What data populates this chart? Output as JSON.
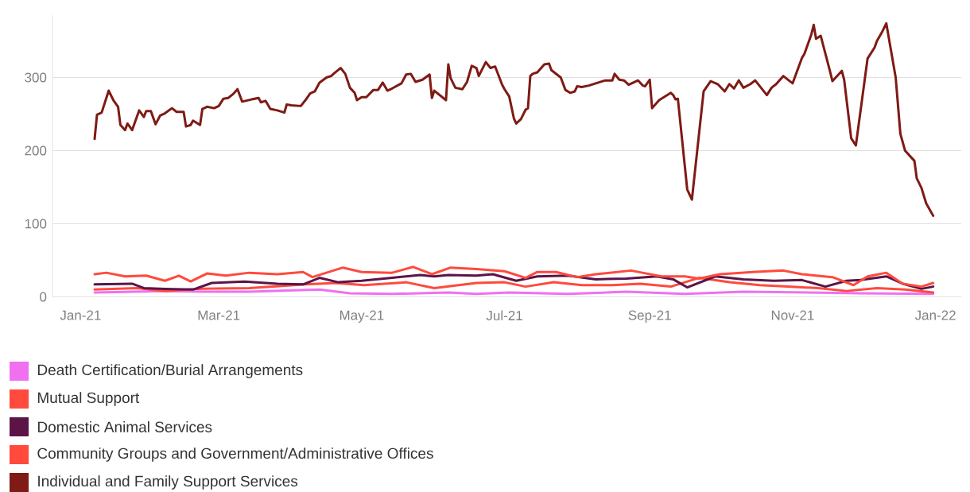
{
  "chart_data": {
    "type": "line",
    "xlim": [
      "2020-12-20",
      "2022-01-12"
    ],
    "xticks": [
      {
        "value": "2021-01-01",
        "label": "Jan-21"
      },
      {
        "value": "2021-03-01",
        "label": "Mar-21"
      },
      {
        "value": "2021-05-01",
        "label": "May-21"
      },
      {
        "value": "2021-07-01",
        "label": "Jul-21"
      },
      {
        "value": "2021-09-01",
        "label": "Sep-21"
      },
      {
        "value": "2021-11-01",
        "label": "Nov-21"
      },
      {
        "value": "2022-01-01",
        "label": "Jan-22"
      }
    ],
    "ylim": [
      0,
      385
    ],
    "yticks": [
      0,
      100,
      200,
      300
    ],
    "grid": "y",
    "legend": "bottom",
    "series": [
      {
        "name": "Death Certification/Burial Arrangements",
        "color": "#f070f0",
        "x": [
          "2021-01-07",
          "2021-02-06",
          "2021-02-24",
          "2021-03-14",
          "2021-04-13",
          "2021-04-26",
          "2021-05-14",
          "2021-06-07",
          "2021-06-19",
          "2021-07-03",
          "2021-07-28",
          "2021-08-22",
          "2021-09-16",
          "2021-10-11",
          "2021-11-05",
          "2021-11-30",
          "2021-12-31"
        ],
        "values": [
          6,
          8,
          7,
          7,
          10,
          5,
          4,
          6,
          4,
          6,
          4,
          7,
          4,
          7,
          6,
          5,
          4
        ]
      },
      {
        "name": "Mutual Support",
        "color": "#ff4a3d",
        "x": [
          "2021-01-07",
          "2021-01-25",
          "2021-02-06",
          "2021-02-20",
          "2021-03-14",
          "2021-04-07",
          "2021-04-20",
          "2021-05-02",
          "2021-05-20",
          "2021-06-01",
          "2021-06-19",
          "2021-07-01",
          "2021-07-10",
          "2021-07-22",
          "2021-08-03",
          "2021-08-16",
          "2021-08-28",
          "2021-09-10",
          "2021-09-22",
          "2021-10-05",
          "2021-10-18",
          "2021-10-30",
          "2021-11-12",
          "2021-11-24",
          "2021-12-07",
          "2021-12-19",
          "2021-12-31"
        ],
        "values": [
          10,
          12,
          8,
          11,
          12,
          17,
          19,
          16,
          20,
          12,
          19,
          20,
          14,
          20,
          16,
          16,
          18,
          14,
          26,
          20,
          16,
          14,
          12,
          8,
          12,
          10,
          6
        ]
      },
      {
        "name": "Domestic Animal Services",
        "color": "#5c1447",
        "x": [
          "2021-01-07",
          "2021-01-23",
          "2021-01-28",
          "2021-02-06",
          "2021-02-18",
          "2021-02-26",
          "2021-03-12",
          "2021-03-26",
          "2021-04-06",
          "2021-04-13",
          "2021-04-21",
          "2021-05-01",
          "2021-05-14",
          "2021-05-26",
          "2021-06-01",
          "2021-06-07",
          "2021-06-19",
          "2021-06-26",
          "2021-07-06",
          "2021-07-15",
          "2021-07-28",
          "2021-08-09",
          "2021-08-22",
          "2021-09-04",
          "2021-09-11",
          "2021-09-17",
          "2021-09-29",
          "2021-10-11",
          "2021-10-24",
          "2021-11-05",
          "2021-11-15",
          "2021-11-24",
          "2021-11-30",
          "2021-12-11",
          "2021-12-18",
          "2021-12-26",
          "2021-12-31"
        ],
        "values": [
          17,
          18,
          12,
          11,
          10,
          19,
          21,
          18,
          17,
          26,
          20,
          22,
          26,
          30,
          28,
          30,
          29,
          31,
          22,
          28,
          29,
          24,
          25,
          28,
          24,
          13,
          28,
          24,
          22,
          23,
          14,
          22,
          23,
          28,
          18,
          11,
          14
        ]
      },
      {
        "name": "Community Groups and Government/Administrative Offices",
        "color": "#ff4a3d",
        "x": [
          "2021-01-07",
          "2021-01-12",
          "2021-01-20",
          "2021-01-29",
          "2021-02-06",
          "2021-02-12",
          "2021-02-17",
          "2021-02-24",
          "2021-03-04",
          "2021-03-14",
          "2021-03-26",
          "2021-04-06",
          "2021-04-10",
          "2021-04-23",
          "2021-05-01",
          "2021-05-14",
          "2021-05-23",
          "2021-05-31",
          "2021-06-08",
          "2021-06-19",
          "2021-07-01",
          "2021-07-10",
          "2021-07-15",
          "2021-07-23",
          "2021-08-01",
          "2021-08-09",
          "2021-08-24",
          "2021-09-06",
          "2021-09-16",
          "2021-09-22",
          "2021-10-01",
          "2021-10-15",
          "2021-10-28",
          "2021-11-05",
          "2021-11-18",
          "2021-11-27",
          "2021-12-03",
          "2021-12-11",
          "2021-12-18",
          "2021-12-26",
          "2021-12-31"
        ],
        "values": [
          31,
          33,
          28,
          29,
          22,
          29,
          21,
          32,
          29,
          33,
          31,
          34,
          27,
          40,
          34,
          33,
          41,
          31,
          40,
          38,
          35,
          26,
          34,
          34,
          27,
          31,
          36,
          28,
          28,
          25,
          31,
          34,
          36,
          31,
          27,
          16,
          28,
          33,
          18,
          14,
          19
        ]
      },
      {
        "name": "Individual and Family Support Services",
        "color": "#7f1a14",
        "x": [
          "2021-01-07",
          "2021-01-08",
          "2021-01-10",
          "2021-01-13",
          "2021-01-15",
          "2021-01-17",
          "2021-01-18",
          "2021-01-20",
          "2021-01-21",
          "2021-01-23",
          "2021-01-26",
          "2021-01-28",
          "2021-01-29",
          "2021-01-31",
          "2021-02-02",
          "2021-02-04",
          "2021-02-06",
          "2021-02-09",
          "2021-02-11",
          "2021-02-14",
          "2021-02-15",
          "2021-02-17",
          "2021-02-18",
          "2021-02-21",
          "2021-02-22",
          "2021-02-24",
          "2021-02-27",
          "2021-03-01",
          "2021-03-03",
          "2021-03-05",
          "2021-03-07",
          "2021-03-09",
          "2021-03-11",
          "2021-03-15",
          "2021-03-18",
          "2021-03-19",
          "2021-03-21",
          "2021-03-23",
          "2021-03-26",
          "2021-03-29",
          "2021-03-30",
          "2021-04-01",
          "2021-04-05",
          "2021-04-07",
          "2021-04-09",
          "2021-04-11",
          "2021-04-13",
          "2021-04-16",
          "2021-04-18",
          "2021-04-19",
          "2021-04-22",
          "2021-04-24",
          "2021-04-26",
          "2021-04-28",
          "2021-04-29",
          "2021-05-01",
          "2021-05-03",
          "2021-05-06",
          "2021-05-08",
          "2021-05-10",
          "2021-05-12",
          "2021-05-14",
          "2021-05-18",
          "2021-05-20",
          "2021-05-22",
          "2021-05-24",
          "2021-05-27",
          "2021-05-30",
          "2021-05-31",
          "2021-06-01",
          "2021-06-06",
          "2021-06-07",
          "2021-06-08",
          "2021-06-10",
          "2021-06-13",
          "2021-06-15",
          "2021-06-17",
          "2021-06-19",
          "2021-06-20",
          "2021-06-23",
          "2021-06-25",
          "2021-06-27",
          "2021-06-30",
          "2021-07-01",
          "2021-07-03",
          "2021-07-05",
          "2021-07-06",
          "2021-07-08",
          "2021-07-10",
          "2021-07-11",
          "2021-07-12",
          "2021-07-13",
          "2021-07-15",
          "2021-07-18",
          "2021-07-20",
          "2021-07-21",
          "2021-07-25",
          "2021-07-27",
          "2021-07-29",
          "2021-07-31",
          "2021-08-01",
          "2021-08-03",
          "2021-08-06",
          "2021-08-13",
          "2021-08-16",
          "2021-08-17",
          "2021-08-19",
          "2021-08-21",
          "2021-08-23",
          "2021-08-27",
          "2021-08-29",
          "2021-08-30",
          "2021-09-01",
          "2021-09-02",
          "2021-09-05",
          "2021-09-10",
          "2021-09-11",
          "2021-09-12",
          "2021-09-13",
          "2021-09-17",
          "2021-09-19",
          "2021-09-24",
          "2021-09-27",
          "2021-09-30",
          "2021-10-03",
          "2021-10-05",
          "2021-10-07",
          "2021-10-09",
          "2021-10-11",
          "2021-10-14",
          "2021-10-16",
          "2021-10-21",
          "2021-10-23",
          "2021-10-25",
          "2021-10-28",
          "2021-11-01",
          "2021-11-05",
          "2021-11-06",
          "2021-11-09",
          "2021-11-10",
          "2021-11-11",
          "2021-11-13",
          "2021-11-17",
          "2021-11-18",
          "2021-11-22",
          "2021-11-23",
          "2021-11-26",
          "2021-11-28",
          "2021-12-03",
          "2021-12-06",
          "2021-12-07",
          "2021-12-09",
          "2021-12-11",
          "2021-12-15",
          "2021-12-17",
          "2021-12-19",
          "2021-12-23",
          "2021-12-24",
          "2021-12-26",
          "2021-12-28",
          "2021-12-31"
        ],
        "values": [
          216,
          249,
          252,
          282,
          269,
          260,
          235,
          228,
          237,
          228,
          255,
          246,
          254,
          254,
          236,
          248,
          251,
          258,
          253,
          253,
          233,
          235,
          241,
          235,
          257,
          260,
          258,
          261,
          271,
          272,
          277,
          284,
          267,
          270,
          272,
          266,
          268,
          257,
          255,
          252,
          263,
          262,
          261,
          269,
          278,
          281,
          293,
          300,
          302,
          305,
          313,
          305,
          286,
          279,
          269,
          273,
          273,
          283,
          283,
          293,
          282,
          285,
          292,
          304,
          305,
          294,
          297,
          304,
          272,
          282,
          269,
          318,
          299,
          286,
          284,
          294,
          316,
          313,
          302,
          321,
          313,
          315,
          290,
          284,
          274,
          244,
          237,
          243,
          256,
          258,
          302,
          305,
          307,
          318,
          319,
          310,
          300,
          283,
          279,
          281,
          288,
          287,
          289,
          296,
          296,
          305,
          297,
          296,
          290,
          296,
          289,
          288,
          297,
          258,
          269,
          279,
          276,
          270,
          271,
          147,
          133,
          281,
          295,
          291,
          281,
          291,
          285,
          296,
          286,
          291,
          296,
          276,
          286,
          291,
          302,
          292,
          327,
          332,
          359,
          372,
          353,
          357,
          308,
          295,
          309,
          297,
          217,
          207,
          326,
          341,
          350,
          361,
          374,
          300,
          223,
          200,
          186,
          162,
          149,
          128,
          111
        ]
      }
    ]
  }
}
